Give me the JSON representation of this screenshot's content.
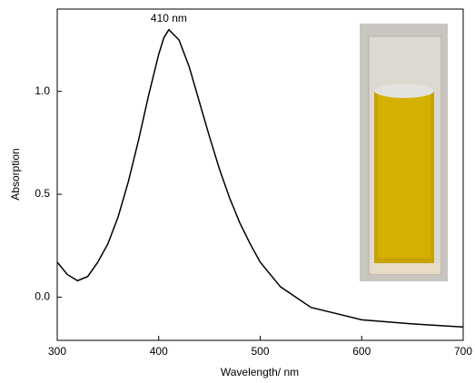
{
  "chart_data": {
    "type": "line",
    "x_label": "Wavelength/ nm",
    "y_label": "Absorption",
    "annotation": "410 nm",
    "x": [
      300,
      310,
      320,
      330,
      340,
      350,
      360,
      370,
      380,
      390,
      400,
      405,
      410,
      420,
      430,
      440,
      450,
      460,
      470,
      480,
      490,
      500,
      520,
      550,
      600,
      650,
      700
    ],
    "series": [
      {
        "name": "Absorption",
        "color": "#000000",
        "values": [
          0.17,
          0.11,
          0.08,
          0.1,
          0.17,
          0.26,
          0.39,
          0.56,
          0.76,
          0.98,
          1.18,
          1.26,
          1.3,
          1.25,
          1.12,
          0.95,
          0.78,
          0.62,
          0.48,
          0.36,
          0.26,
          0.17,
          0.05,
          -0.05,
          -0.11,
          -0.13,
          -0.145
        ]
      }
    ],
    "xlim": [
      300,
      700
    ],
    "xticks": [
      300,
      400,
      500,
      600,
      700
    ],
    "ylim": [
      -0.21,
      1.4
    ],
    "yticks": [
      {
        "value": 0,
        "label": "0.0"
      },
      {
        "value": 0.5,
        "label": "0.5"
      },
      {
        "value": 1,
        "label": "1.0"
      }
    ]
  }
}
